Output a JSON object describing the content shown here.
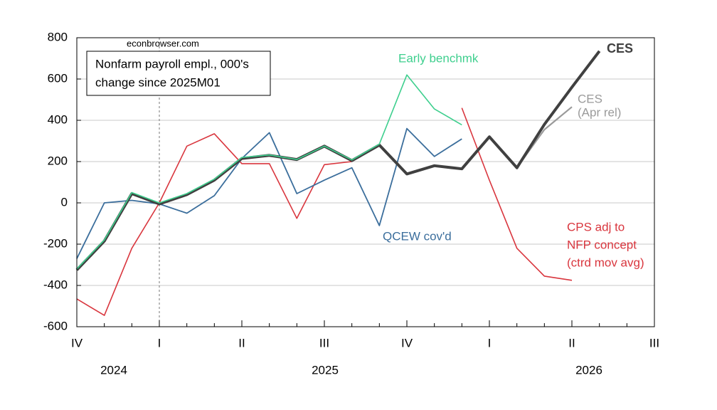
{
  "chart_data": {
    "type": "line",
    "source": "econbrowser.com",
    "title_lines": [
      "Nonfarm payroll empl., 000's",
      "change since 2025M01"
    ],
    "categories": [
      "IV",
      null,
      null,
      "I",
      null,
      null,
      "II",
      null,
      null,
      "III",
      null,
      null,
      "IV",
      null,
      null,
      "I",
      null,
      null,
      "II",
      null,
      null,
      "III"
    ],
    "year_labels": [
      "2024",
      "2025",
      "2026"
    ],
    "ylim": [
      -600,
      800
    ],
    "yticks": [
      -600,
      -400,
      -200,
      0,
      200,
      400,
      600,
      800
    ],
    "grid": true,
    "series": [
      {
        "label_lines": [
          "CPS adj to",
          "NFP concept",
          "(ctrd mov avg)"
        ],
        "color": "#d9363e",
        "values": [
          -465,
          -545,
          -220,
          0,
          275,
          335,
          190,
          190,
          -75,
          185,
          200,
          null,
          null,
          null,
          460,
          110,
          -220,
          -355,
          -375,
          null,
          null,
          null
        ]
      },
      {
        "color": "#c0202a",
        "dash": true,
        "values": [
          null,
          null,
          null,
          null,
          null,
          null,
          null,
          null,
          null,
          null,
          200,
          null,
          null,
          null,
          460,
          null,
          null,
          null,
          null,
          null,
          null,
          null
        ]
      },
      {
        "label_lines": [
          "QCEW cov'd"
        ],
        "color": "#3b6e9c",
        "values": [
          -270,
          0,
          12,
          -5,
          -50,
          35,
          215,
          340,
          45,
          110,
          170,
          -110,
          360,
          225,
          310,
          null,
          null,
          null,
          null,
          null,
          null,
          null
        ]
      },
      {
        "label_lines": [
          "CES",
          "(Apr rel)"
        ],
        "color": "#9a9a9a",
        "values": [
          null,
          null,
          null,
          null,
          null,
          null,
          null,
          null,
          null,
          null,
          null,
          null,
          null,
          null,
          null,
          null,
          170,
          355,
          465,
          null,
          null,
          null
        ]
      },
      {
        "label_lines": [
          "CES"
        ],
        "color": "#404040",
        "bold": true,
        "values": [
          -325,
          -185,
          45,
          -5,
          40,
          110,
          215,
          230,
          210,
          275,
          205,
          280,
          140,
          180,
          165,
          320,
          170,
          380,
          560,
          735,
          null,
          null
        ]
      },
      {
        "label_lines": [
          "Early benchmk"
        ],
        "color": "#3ecf8e",
        "values": [
          -320,
          -180,
          50,
          0,
          45,
          115,
          220,
          232,
          210,
          275,
          208,
          285,
          620,
          455,
          378,
          null,
          null,
          null,
          null,
          null,
          null,
          null
        ]
      }
    ]
  }
}
